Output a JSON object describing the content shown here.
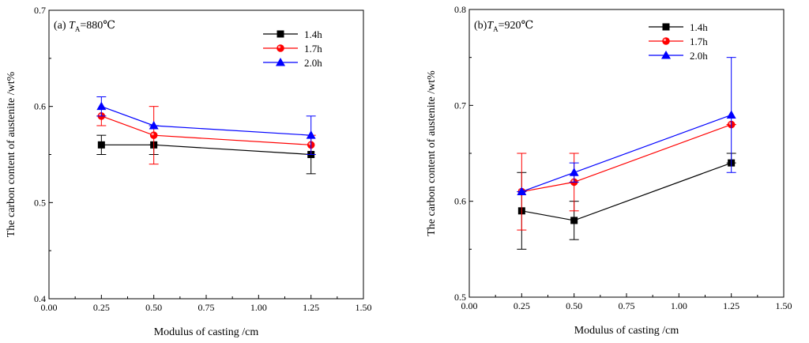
{
  "chart_data": [
    {
      "type": "line",
      "panel_label": {
        "prefix": "(a) ",
        "var": "T",
        "sub": "A",
        "value": "=880℃"
      },
      "xlabel": "Modulus of casting /cm",
      "ylabel": "The carbon content of austenite /wt%",
      "xlim": [
        0.0,
        1.5
      ],
      "ylim": [
        0.4,
        0.7
      ],
      "xticks": [
        "0.00",
        "0.25",
        "0.50",
        "0.75",
        "1.00",
        "1.25",
        "1.50"
      ],
      "yticks": [
        "0.4",
        "0.5",
        "0.6",
        "0.7"
      ],
      "legend_position": "top-right",
      "grid": false,
      "x": [
        0.25,
        0.5,
        1.25
      ],
      "series": [
        {
          "name": "1.4h",
          "color": "#000000",
          "marker": "square",
          "values": [
            0.56,
            0.56,
            0.55
          ],
          "err_low": [
            0.55,
            0.55,
            0.53
          ],
          "err_high": [
            0.57,
            0.56,
            0.55
          ]
        },
        {
          "name": "1.7h",
          "color": "#ff0000",
          "marker": "circle",
          "values": [
            0.59,
            0.57,
            0.56
          ],
          "err_low": [
            0.58,
            0.54,
            0.55
          ],
          "err_high": [
            0.59,
            0.6,
            0.57
          ]
        },
        {
          "name": "2.0h",
          "color": "#0000ff",
          "marker": "triangle",
          "values": [
            0.6,
            0.58,
            0.57
          ],
          "err_low": [
            0.59,
            0.58,
            0.55
          ],
          "err_high": [
            0.61,
            0.58,
            0.59
          ]
        }
      ]
    },
    {
      "type": "line",
      "panel_label": {
        "prefix": "(b)",
        "var": "T",
        "sub": "A",
        "value": "=920℃"
      },
      "xlabel": "Modulus of casting /cm",
      "ylabel": "The carbon content of austenite /wt%",
      "xlim": [
        0.0,
        1.5
      ],
      "ylim": [
        0.5,
        0.8
      ],
      "xticks": [
        "0.00",
        "0.25",
        "0.50",
        "0.75",
        "1.00",
        "1.25",
        "1.50"
      ],
      "yticks": [
        "0.5",
        "0.6",
        "0.7",
        "0.8"
      ],
      "legend_position": "top-right",
      "grid": false,
      "x": [
        0.25,
        0.5,
        1.25
      ],
      "series": [
        {
          "name": "1.4h",
          "color": "#000000",
          "marker": "square",
          "values": [
            0.59,
            0.58,
            0.64
          ],
          "err_low": [
            0.55,
            0.56,
            0.64
          ],
          "err_high": [
            0.63,
            0.6,
            0.65
          ]
        },
        {
          "name": "1.7h",
          "color": "#ff0000",
          "marker": "circle",
          "values": [
            0.61,
            0.62,
            0.68
          ],
          "err_low": [
            0.57,
            0.59,
            0.68
          ],
          "err_high": [
            0.65,
            0.65,
            0.68
          ]
        },
        {
          "name": "2.0h",
          "color": "#0000ff",
          "marker": "triangle",
          "values": [
            0.61,
            0.63,
            0.69
          ],
          "err_low": [
            0.61,
            0.62,
            0.63
          ],
          "err_high": [
            0.61,
            0.64,
            0.75
          ]
        }
      ]
    }
  ]
}
